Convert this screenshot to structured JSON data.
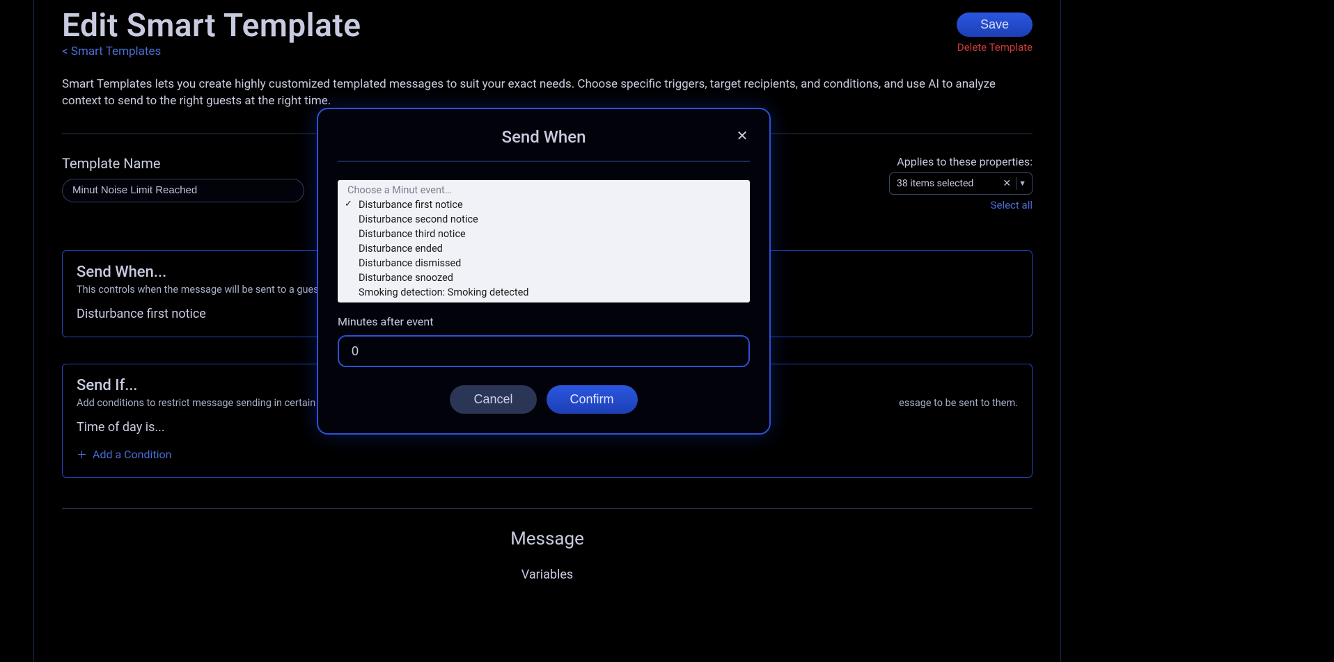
{
  "page": {
    "title": "Edit Smart Template",
    "breadcrumb": "< Smart Templates",
    "save": "Save",
    "delete": "Delete Template",
    "intro": "Smart Templates lets you create highly customized templated messages to suit your exact needs. Choose specific triggers, target recipients, and conditions, and use AI to analyze context to send to the right guests at the right time."
  },
  "template_name": {
    "label": "Template Name",
    "value": "Minut Noise Limit Reached"
  },
  "applies": {
    "label": "Applies to these properties:",
    "selected_text": "38 items selected",
    "select_all": "Select all"
  },
  "send_when_card": {
    "title": "Send When...",
    "subtitle": "This controls when the message will be sent to a guest.",
    "value": "Disturbance first notice"
  },
  "send_if_card": {
    "title": "Send If...",
    "subtitle_left": "Add conditions to restrict message sending in certain situ",
    "subtitle_right": "essage to be sent to them.",
    "value": "Time of day is...",
    "add_condition": "Add a Condition"
  },
  "section": {
    "message": "Message",
    "variables": "Variables"
  },
  "modal": {
    "title": "Send When",
    "placeholder": "Choose a Minut event…",
    "options": [
      "Disturbance first notice",
      "Disturbance second notice",
      "Disturbance third notice",
      "Disturbance ended",
      "Disturbance dismissed",
      "Disturbance snoozed",
      "Smoking detection: Smoking detected"
    ],
    "selected_index": 0,
    "minutes_label": "Minutes after event",
    "minutes_value": "0",
    "cancel": "Cancel",
    "confirm": "Confirm"
  },
  "colors": {
    "accent": "#2a52d8",
    "link": "#4a6dd8",
    "danger": "#d13a3a",
    "border_soft": "#2a3658",
    "text": "#c8cbe0"
  }
}
